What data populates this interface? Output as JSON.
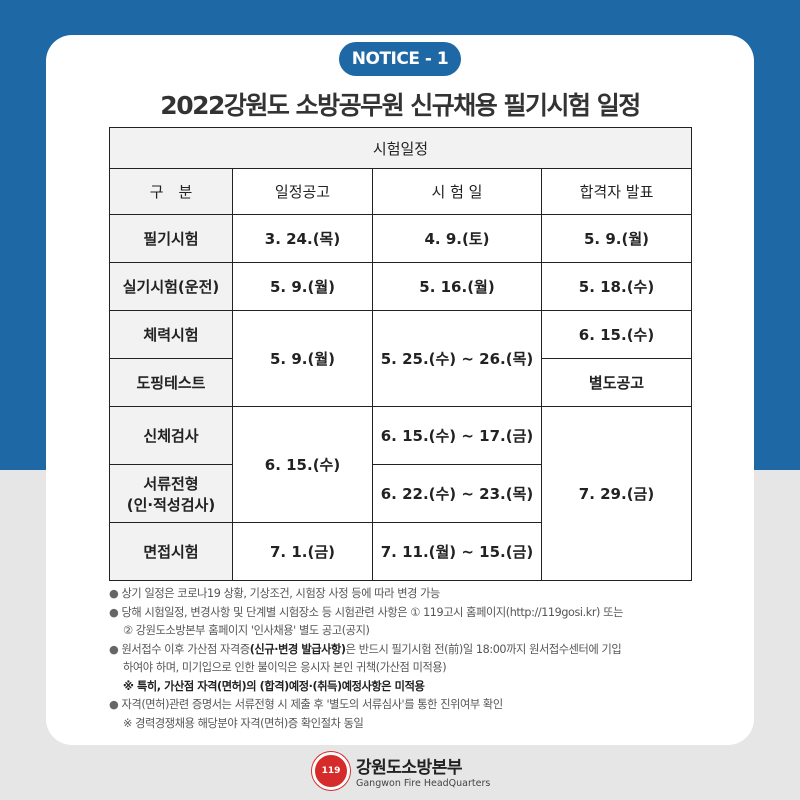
{
  "badge": "NOTICE - 1",
  "title": "2022강원도 소방공무원 신규채용 필기시험 일정",
  "table": {
    "caption": "시험일정",
    "headers": [
      "구　분",
      "일정공고",
      "시 험 일",
      "합격자 발표"
    ],
    "rows": {
      "written": {
        "label": "필기시험",
        "notice": "3. 24.(목)",
        "exam": "4. 9.(토)",
        "result": "5. 9.(월)"
      },
      "practical": {
        "label": "실기시험(운전)",
        "notice": "5. 9.(월)",
        "exam": "5. 16.(월)",
        "result": "5. 18.(수)"
      },
      "fitness": {
        "label": "체력시험",
        "result": "6. 15.(수)"
      },
      "doping": {
        "label": "도핑테스트",
        "result": "별도공고"
      },
      "fitness_doping_notice": "5. 9.(월)",
      "fitness_doping_exam": "5. 25.(수) ~ 26.(목)",
      "physical": {
        "label": "신체검사",
        "exam": "6. 15.(수) ~ 17.(금)"
      },
      "document": {
        "label_1": "서류전형",
        "label_2": "(인·적성검사)",
        "exam": "6. 22.(수) ~ 23.(목)"
      },
      "phys_doc_notice": "6. 15.(수)",
      "interview": {
        "label": "면접시험",
        "notice": "7. 1.(금)",
        "exam": "7. 11.(월) ~ 15.(금)"
      },
      "final_result": "7. 29.(금)"
    }
  },
  "notes": {
    "n1": "상기 일정은 코로나19 상황, 기상조건, 시험장 사정 등에 따라 변경 가능",
    "n2a": "당해 시험일정, 변경사항 및 단계별 시험장소 등 시험관련 사항은 ① 119고시 홈페이지(http://119gosi.kr) 또는",
    "n2b": "② 강원도소방본부 홈페이지 '인사채용' 별도 공고(공지)",
    "n3a_pre": "원서접수 이후 가산점 자격증",
    "n3a_bold": "(신규·변경 발급사항)",
    "n3a_post": "은 반드시 필기시험 전(前)일 18:00까지 원서접수센터에 기입",
    "n3b": "하여야 하며, 미기입으로 인한 불이익은 응시자 본인 귀책(가산점 미적용)",
    "n3c": "※ 특히, 가산점 자격(면허)의 (합격)예정·(취득)예정사항은 미적용",
    "n4": "자격(면허)관련 증명서는 서류전형 시 제출 후 '별도의 서류심사'를 통한 진위여부 확인",
    "n4b": "※ 경력경쟁채용 해당분야 자격(면허)증 확인절차 동일"
  },
  "footer": {
    "name_ko": "강원도소방본부",
    "name_en": "Gangwon Fire HeadQuarters",
    "logo_text": "119"
  },
  "colors": {
    "brand_blue": "#1e68a6",
    "header_gray": "#f2f2f2"
  }
}
